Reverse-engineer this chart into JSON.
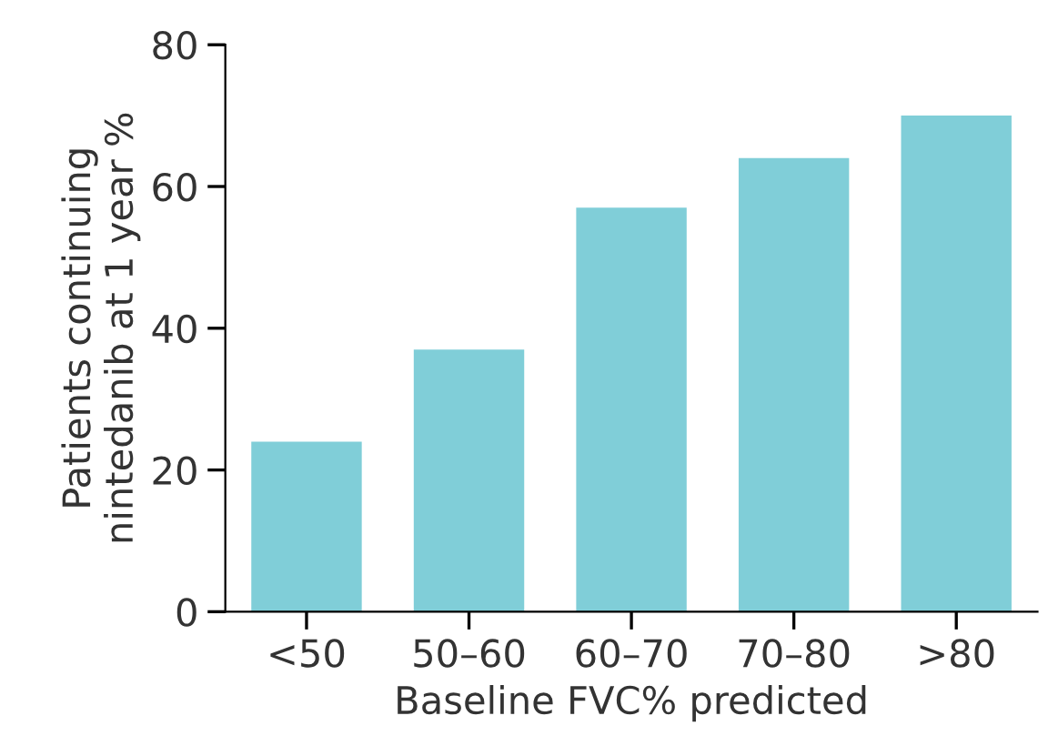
{
  "chart_data": {
    "type": "bar",
    "xlabel": "Baseline FVC% predicted",
    "ylabel": "Patients continuing\nnintedanib at 1 year %",
    "categories": [
      "<50",
      "50–60",
      "60–70",
      "70–80",
      ">80"
    ],
    "values": [
      24,
      37,
      57,
      64,
      70
    ],
    "color": "#80ced8",
    "ylim": [
      0,
      80
    ],
    "yticks": [
      0,
      20,
      40,
      60,
      80
    ],
    "grid": false
  }
}
